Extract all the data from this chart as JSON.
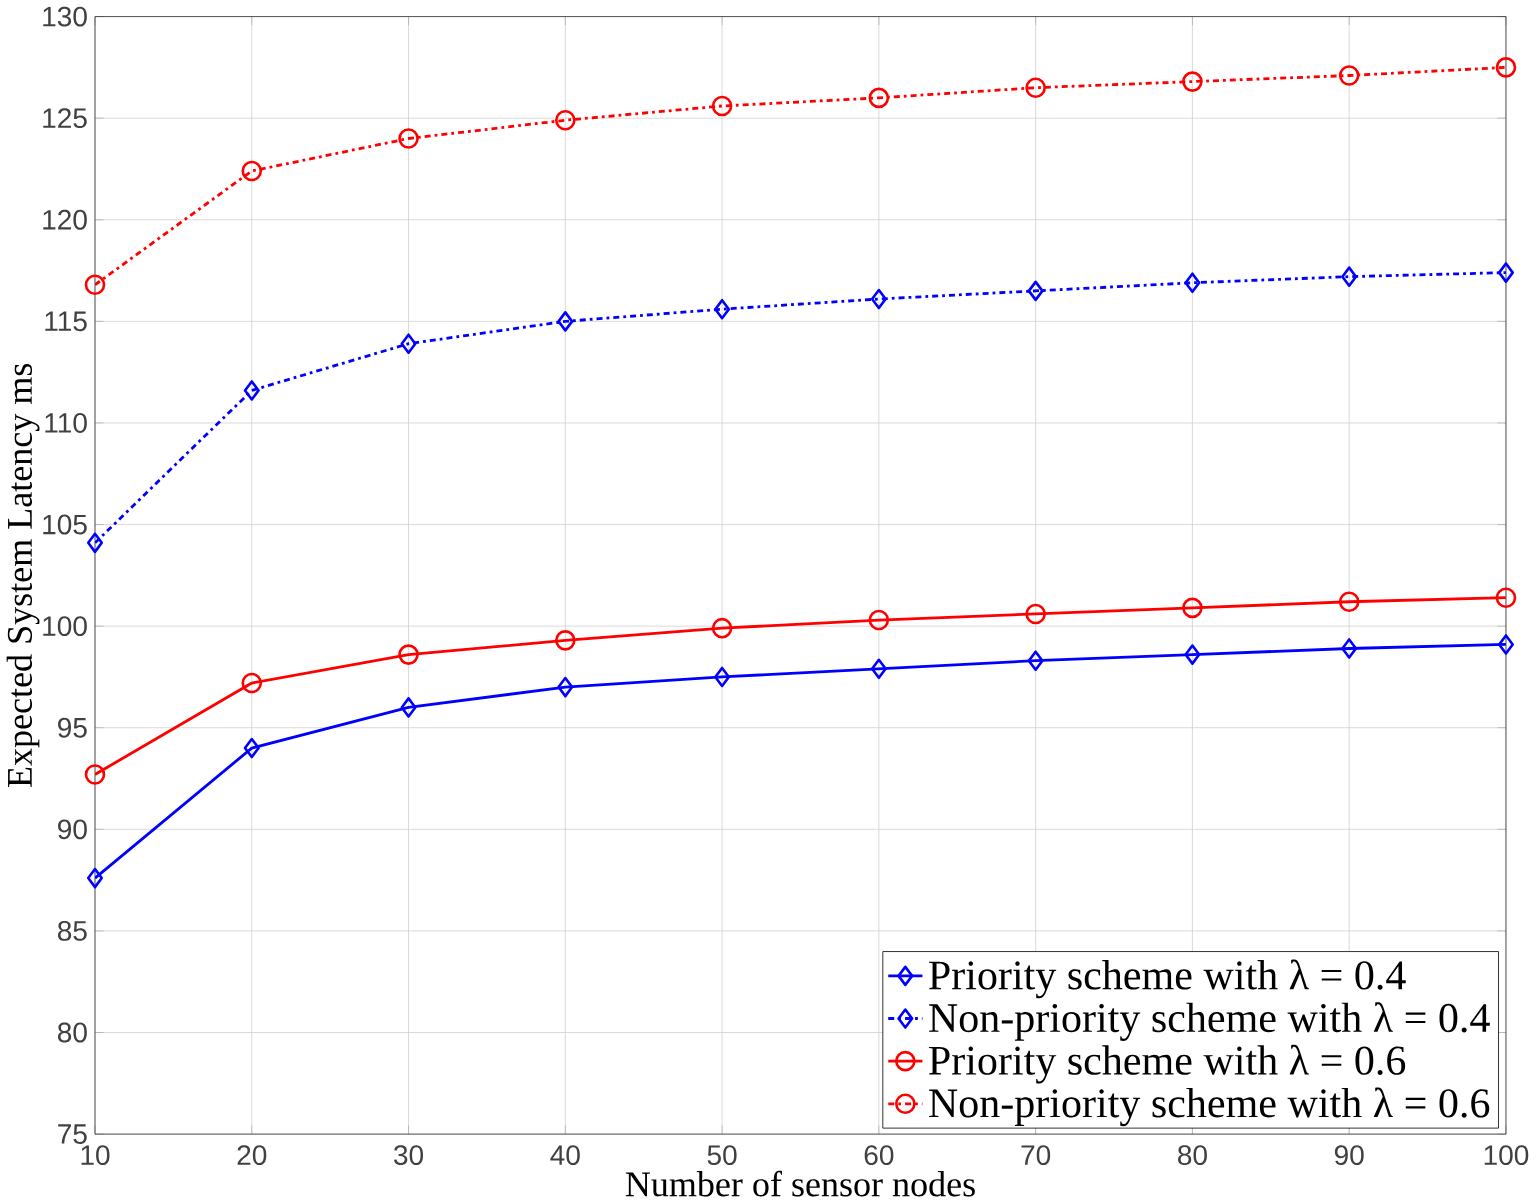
{
  "chart_data": {
    "type": "line",
    "xlabel": "Number of sensor nodes",
    "ylabel": "Expected System Latency  ms",
    "x": [
      10,
      20,
      30,
      40,
      50,
      60,
      70,
      80,
      90,
      100
    ],
    "series": [
      {
        "name": "Priority scheme with λ = 0.4",
        "color": "#0000ff",
        "marker": "diamond",
        "line_style": "solid",
        "values": [
          87.6,
          94.0,
          96.0,
          97.0,
          97.5,
          97.9,
          98.3,
          98.6,
          98.9,
          99.1
        ]
      },
      {
        "name": "Non-priority scheme with λ = 0.4",
        "color": "#0000ff",
        "marker": "diamond",
        "line_style": "dashdot",
        "values": [
          104.1,
          111.6,
          113.9,
          115.0,
          115.6,
          116.1,
          116.5,
          116.9,
          117.2,
          117.4
        ]
      },
      {
        "name": "Priority scheme with λ = 0.6",
        "color": "#ff0000",
        "marker": "circle",
        "line_style": "solid",
        "values": [
          92.7,
          97.2,
          98.6,
          99.3,
          99.9,
          100.3,
          100.6,
          100.9,
          101.2,
          101.4
        ]
      },
      {
        "name": "Non-priority scheme with λ = 0.6",
        "color": "#ff0000",
        "marker": "circle",
        "line_style": "dashdot",
        "values": [
          116.8,
          122.4,
          124.0,
          124.9,
          125.6,
          126.0,
          126.5,
          126.8,
          127.1,
          127.5
        ]
      }
    ],
    "xlim": [
      10,
      100
    ],
    "ylim": [
      75,
      130
    ],
    "xticks": [
      10,
      20,
      30,
      40,
      50,
      60,
      70,
      80,
      90,
      100
    ],
    "yticks": [
      75,
      80,
      85,
      90,
      95,
      100,
      105,
      110,
      115,
      120,
      125,
      130
    ],
    "grid": true,
    "legend": "bottom right"
  }
}
